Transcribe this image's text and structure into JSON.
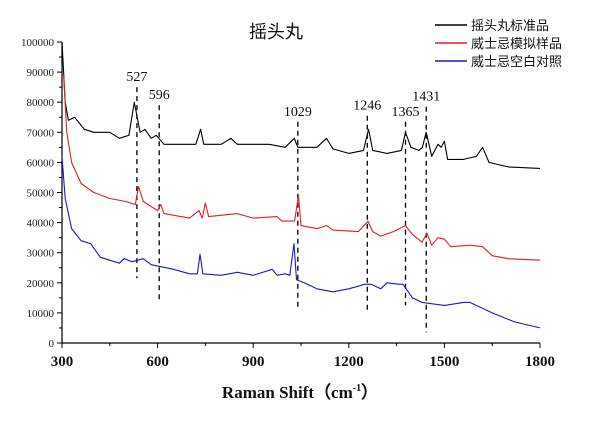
{
  "chart_data": {
    "type": "line",
    "title": "摇头丸",
    "xlabel": "Raman Shift（cm",
    "xlabel_sup": "-1",
    "xlabel_close": "）",
    "ylabel": "",
    "xlim": [
      300,
      1800
    ],
    "ylim": [
      0,
      100000
    ],
    "xticks": [
      300,
      600,
      900,
      1200,
      1500,
      1800
    ],
    "yticks": [
      0,
      10000,
      20000,
      30000,
      40000,
      50000,
      60000,
      70000,
      80000,
      90000,
      100000
    ],
    "grid": false,
    "legend_position": "top-right",
    "series": [
      {
        "name": "摇头丸标准品",
        "color": "#000000",
        "x": [
          300,
          310,
          320,
          340,
          370,
          400,
          450,
          480,
          510,
          527,
          545,
          560,
          580,
          596,
          620,
          650,
          700,
          720,
          735,
          745,
          800,
          830,
          850,
          900,
          950,
          1000,
          1029,
          1040,
          1100,
          1130,
          1150,
          1200,
          1246,
          1262,
          1275,
          1320,
          1365,
          1378,
          1395,
          1420,
          1431,
          1443,
          1460,
          1480,
          1490,
          1500,
          1510,
          1560,
          1600,
          1620,
          1640,
          1700,
          1800
        ],
        "y": [
          100000,
          80000,
          74000,
          75000,
          71000,
          70000,
          70000,
          68000,
          69000,
          80000,
          70000,
          71000,
          68000,
          69000,
          66000,
          66000,
          66000,
          66000,
          71000,
          66000,
          66000,
          68000,
          66000,
          66000,
          66000,
          65000,
          68000,
          65000,
          65000,
          68000,
          64500,
          63000,
          64000,
          71000,
          64000,
          63000,
          64000,
          70000,
          65000,
          64000,
          65000,
          70000,
          62000,
          66000,
          65000,
          67000,
          61000,
          61000,
          62000,
          65000,
          60000,
          58500,
          58000
        ]
      },
      {
        "name": "威士忌模拟样品",
        "color": "#e02020",
        "x": [
          300,
          305,
          315,
          330,
          360,
          400,
          450,
          500,
          530,
          540,
          555,
          570,
          600,
          610,
          620,
          700,
          730,
          740,
          750,
          760,
          850,
          900,
          975,
          990,
          1030,
          1042,
          1050,
          1100,
          1130,
          1150,
          1230,
          1260,
          1275,
          1300,
          1340,
          1378,
          1400,
          1430,
          1445,
          1460,
          1480,
          1500,
          1520,
          1580,
          1620,
          1650,
          1700,
          1800
        ],
        "y": [
          89000,
          89000,
          70000,
          60000,
          53000,
          50000,
          48000,
          47000,
          46000,
          52000,
          47000,
          46000,
          44000,
          46000,
          43000,
          41500,
          44000,
          41500,
          46500,
          42000,
          43000,
          41500,
          42000,
          40500,
          40500,
          49000,
          39000,
          38000,
          39000,
          37500,
          37000,
          40500,
          37000,
          35500,
          37000,
          39000,
          36000,
          33500,
          36500,
          32500,
          35000,
          34500,
          32000,
          32500,
          32000,
          29000,
          28000,
          27500
        ]
      },
      {
        "name": "威士忌空白对照",
        "color": "#1a1acc",
        "x": [
          300,
          310,
          330,
          360,
          390,
          420,
          480,
          495,
          520,
          555,
          580,
          650,
          700,
          725,
          733,
          742,
          800,
          850,
          900,
          960,
          975,
          1000,
          1015,
          1028,
          1036,
          1060,
          1100,
          1150,
          1200,
          1250,
          1270,
          1300,
          1320,
          1360,
          1370,
          1400,
          1430,
          1500,
          1560,
          1580,
          1650,
          1720,
          1800
        ],
        "y": [
          62000,
          48000,
          38000,
          34000,
          33000,
          28500,
          26500,
          28000,
          27000,
          28000,
          26000,
          24500,
          23000,
          23000,
          29500,
          23000,
          22500,
          23500,
          22500,
          24500,
          22500,
          23000,
          22500,
          33000,
          21000,
          20000,
          18000,
          17000,
          18000,
          19500,
          19500,
          18000,
          20000,
          19500,
          19500,
          15000,
          13500,
          12500,
          13500,
          13500,
          10000,
          7000,
          5000
        ]
      }
    ],
    "annotations": [
      {
        "label": "527",
        "x": 535,
        "y_top": 85000,
        "y_bottom": 21500
      },
      {
        "label": "596",
        "x": 605,
        "y_top": 79000,
        "y_bottom": 14000
      },
      {
        "label": "1029",
        "x": 1040,
        "y_top": 73500,
        "y_bottom": 12000
      },
      {
        "label": "1246",
        "x": 1258,
        "y_top": 75500,
        "y_bottom": 11000
      },
      {
        "label": "1365",
        "x": 1378,
        "y_top": 73500,
        "y_bottom": 12500
      },
      {
        "label": "1431",
        "x": 1443,
        "y_top": 78500,
        "y_bottom": 3500
      }
    ]
  }
}
